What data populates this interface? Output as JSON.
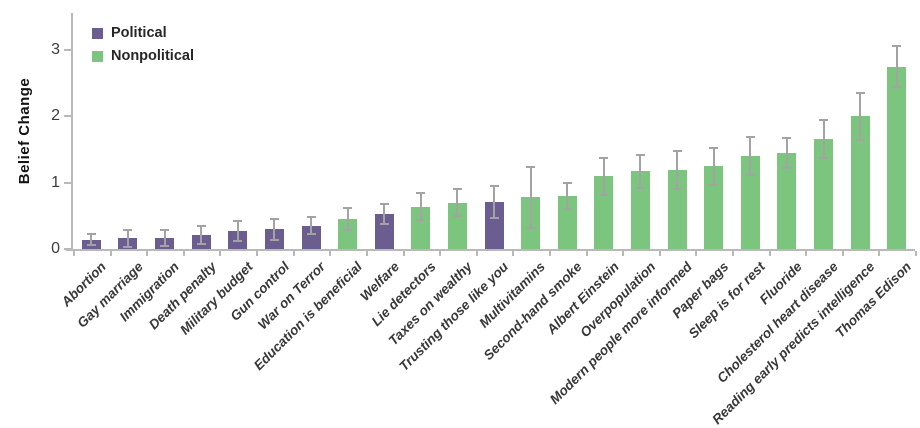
{
  "chart_data": {
    "type": "bar",
    "title": "",
    "ylabel": "Belief Change",
    "xlabel": "",
    "ylim": [
      0,
      3.5
    ],
    "yticks": [
      0,
      1,
      2,
      3
    ],
    "grid": false,
    "error_bars": true,
    "legend_position": "top-left-inside",
    "colors": {
      "political": "#6c5d91",
      "nonpolitical": "#7cc57e",
      "axis": "#b9b9b9",
      "error_bar": "#a3a3a3"
    },
    "legend": [
      {
        "label": "Political",
        "color": "#6c5d91"
      },
      {
        "label": "Nonpolitical",
        "color": "#7cc57e"
      }
    ],
    "bars": [
      {
        "label": "Abortion",
        "group": "Political",
        "value": 0.14,
        "error": 0.08
      },
      {
        "label": "Gay marriage",
        "group": "Political",
        "value": 0.16,
        "error": 0.13
      },
      {
        "label": "Immigration",
        "group": "Political",
        "value": 0.16,
        "error": 0.12
      },
      {
        "label": "Death penalty",
        "group": "Political",
        "value": 0.21,
        "error": 0.14
      },
      {
        "label": "Military budget",
        "group": "Political",
        "value": 0.27,
        "error": 0.15
      },
      {
        "label": "Gun control",
        "group": "Political",
        "value": 0.3,
        "error": 0.16
      },
      {
        "label": "War on Terror",
        "group": "Political",
        "value": 0.35,
        "error": 0.13
      },
      {
        "label": "Education is beneficial",
        "group": "Nonpolitical",
        "value": 0.45,
        "error": 0.17
      },
      {
        "label": "Welfare",
        "group": "Political",
        "value": 0.53,
        "error": 0.15
      },
      {
        "label": "Lie detectors",
        "group": "Nonpolitical",
        "value": 0.64,
        "error": 0.2
      },
      {
        "label": "Taxes on wealthy",
        "group": "Nonpolitical",
        "value": 0.7,
        "error": 0.2
      },
      {
        "label": "Trusting those like you",
        "group": "Political",
        "value": 0.71,
        "error": 0.24
      },
      {
        "label": "Multivitamins",
        "group": "Nonpolitical",
        "value": 0.78,
        "error": 0.46
      },
      {
        "label": "Second-hand smoke",
        "group": "Nonpolitical",
        "value": 0.8,
        "error": 0.19
      },
      {
        "label": "Albert Einstein",
        "group": "Nonpolitical",
        "value": 1.1,
        "error": 0.28
      },
      {
        "label": "Overpopulation",
        "group": "Nonpolitical",
        "value": 1.17,
        "error": 0.25
      },
      {
        "label": "Modern people more informed",
        "group": "Nonpolitical",
        "value": 1.19,
        "error": 0.29
      },
      {
        "label": "Paper bags",
        "group": "Nonpolitical",
        "value": 1.25,
        "error": 0.28
      },
      {
        "label": "Sleep is for rest",
        "group": "Nonpolitical",
        "value": 1.4,
        "error": 0.29
      },
      {
        "label": "Fluoride",
        "group": "Nonpolitical",
        "value": 1.45,
        "error": 0.22
      },
      {
        "label": "Cholesterol heart disease",
        "group": "Nonpolitical",
        "value": 1.66,
        "error": 0.28
      },
      {
        "label": "Reading early predicts intelligence",
        "group": "Nonpolitical",
        "value": 2.0,
        "error": 0.36
      },
      {
        "label": "Thomas Edison",
        "group": "Nonpolitical",
        "value": 2.75,
        "error": 0.31
      }
    ]
  }
}
